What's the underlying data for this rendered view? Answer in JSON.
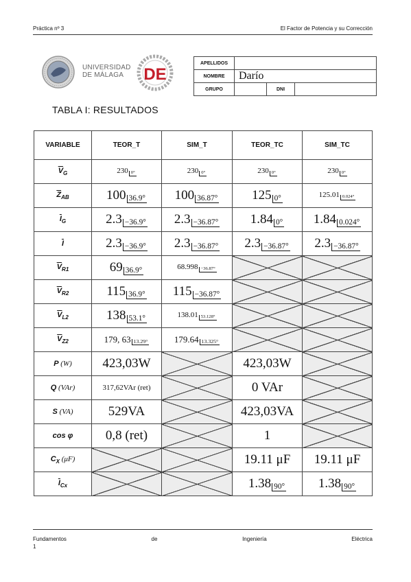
{
  "header": {
    "left": "Práctica nº 3",
    "right": "El Factor de Potencia y su Corrección"
  },
  "logos": {
    "university_line1": "UNIVERSIDAD",
    "university_line2": "DE MÁLAGA",
    "department_letters": "DE"
  },
  "student": {
    "apellidos_label": "APELLIDOS",
    "apellidos_value": "",
    "nombre_label": "NOMBRE",
    "nombre_value": "Darío",
    "grupo_label": "GRUPO",
    "grupo_value": "",
    "dni_label": "DNI",
    "dni_value": ""
  },
  "table_title": "TABLA I: RESULTADOS",
  "results": {
    "columns": [
      "VARIABLE",
      "TEOR_T",
      "SIM_T",
      "TEOR_TC",
      "SIM_TC"
    ],
    "rows": [
      {
        "var": "V",
        "sub": "G",
        "cells": [
          {
            "mag": "230",
            "ang": "0°",
            "size": "tiny"
          },
          {
            "mag": "230",
            "ang": "0°",
            "size": "tiny"
          },
          {
            "mag": "230",
            "ang": "0°",
            "size": "tiny"
          },
          {
            "mag": "230",
            "ang": "0°",
            "size": "tiny"
          }
        ]
      },
      {
        "var": "Z",
        "sub": "AB",
        "cells": [
          {
            "mag": "100",
            "ang": "36.9°"
          },
          {
            "mag": "100",
            "ang": "36.87°"
          },
          {
            "mag": "125",
            "ang": "0°"
          },
          {
            "mag": "125.01",
            "ang": "0.024°",
            "size": "tiny"
          }
        ]
      },
      {
        "var": "I",
        "sub": "G",
        "cells": [
          {
            "mag": "2.3",
            "ang": "−36.9°"
          },
          {
            "mag": "2.3",
            "ang": "−36.87°"
          },
          {
            "mag": "1.84",
            "ang": "0°"
          },
          {
            "mag": "1.84",
            "ang": "0.024°"
          }
        ]
      },
      {
        "var": "I",
        "sub": "",
        "cells": [
          {
            "mag": "2.3",
            "ang": "−36.9°"
          },
          {
            "mag": "2.3",
            "ang": "−36.87°"
          },
          {
            "mag": "2.3",
            "ang": "−36.87°"
          },
          {
            "mag": "2.3",
            "ang": "−36.87°"
          }
        ]
      },
      {
        "var": "V",
        "sub": "R1",
        "cells": [
          {
            "mag": "69",
            "ang": "36.9°"
          },
          {
            "mag": "68.998",
            "ang": "−36.87°",
            "size": "tiny"
          },
          {
            "cross": true
          },
          {
            "cross": true
          }
        ]
      },
      {
        "var": "V",
        "sub": "R2",
        "cells": [
          {
            "mag": "115",
            "ang": "36.9°"
          },
          {
            "mag": "115",
            "ang": "−36.87°"
          },
          {
            "cross": true
          },
          {
            "cross": true
          }
        ]
      },
      {
        "var": "V",
        "sub": "L2",
        "cells": [
          {
            "mag": "138",
            "ang": "53.1°"
          },
          {
            "mag": "138.01",
            "ang": "53.128°",
            "size": "tiny"
          },
          {
            "cross": true
          },
          {
            "cross": true
          }
        ]
      },
      {
        "var": "V",
        "sub": "Z2",
        "cells": [
          {
            "mag": "179, 63",
            "ang": "13.29°",
            "size": "small"
          },
          {
            "mag": "179.64",
            "ang": "13.325°",
            "size": "small"
          },
          {
            "cross": true
          },
          {
            "cross": true
          }
        ]
      },
      {
        "var": "P",
        "unit": "(W)",
        "cells": [
          {
            "text": "423,03W"
          },
          {
            "cross": true
          },
          {
            "text": "423,03W"
          },
          {
            "cross": true
          }
        ]
      },
      {
        "var": "Q",
        "unit": "(VAr)",
        "cells": [
          {
            "text": "317,62VAr (ret)",
            "size": "tiny"
          },
          {
            "cross": true
          },
          {
            "text": "0 VAr"
          },
          {
            "cross": true
          }
        ]
      },
      {
        "var": "S",
        "unit": "(VA)",
        "cells": [
          {
            "text": "529VA"
          },
          {
            "cross": true
          },
          {
            "text": "423,03VA"
          },
          {
            "cross": true
          }
        ]
      },
      {
        "var": "cos φ",
        "unit": "",
        "cells": [
          {
            "text": "0,8 (ret)"
          },
          {
            "cross": true
          },
          {
            "text": "1"
          },
          {
            "cross": true
          }
        ]
      },
      {
        "var": "C",
        "sub": "X",
        "unit": "(μF)",
        "cells": [
          {
            "cross": true
          },
          {
            "cross": true
          },
          {
            "text": "19.11 μF"
          },
          {
            "text": "19.11 μF"
          }
        ]
      },
      {
        "var": "I",
        "sub": "Cx",
        "cells": [
          {
            "cross": true
          },
          {
            "cross": true
          },
          {
            "mag": "1.38",
            "ang": "90°"
          },
          {
            "mag": "1.38",
            "ang": "90°"
          }
        ]
      }
    ]
  },
  "footer": {
    "col1": "Fundamentos",
    "col2": "de",
    "col3": "Ingeniería",
    "col4": "Eléctrica",
    "page": "1"
  }
}
